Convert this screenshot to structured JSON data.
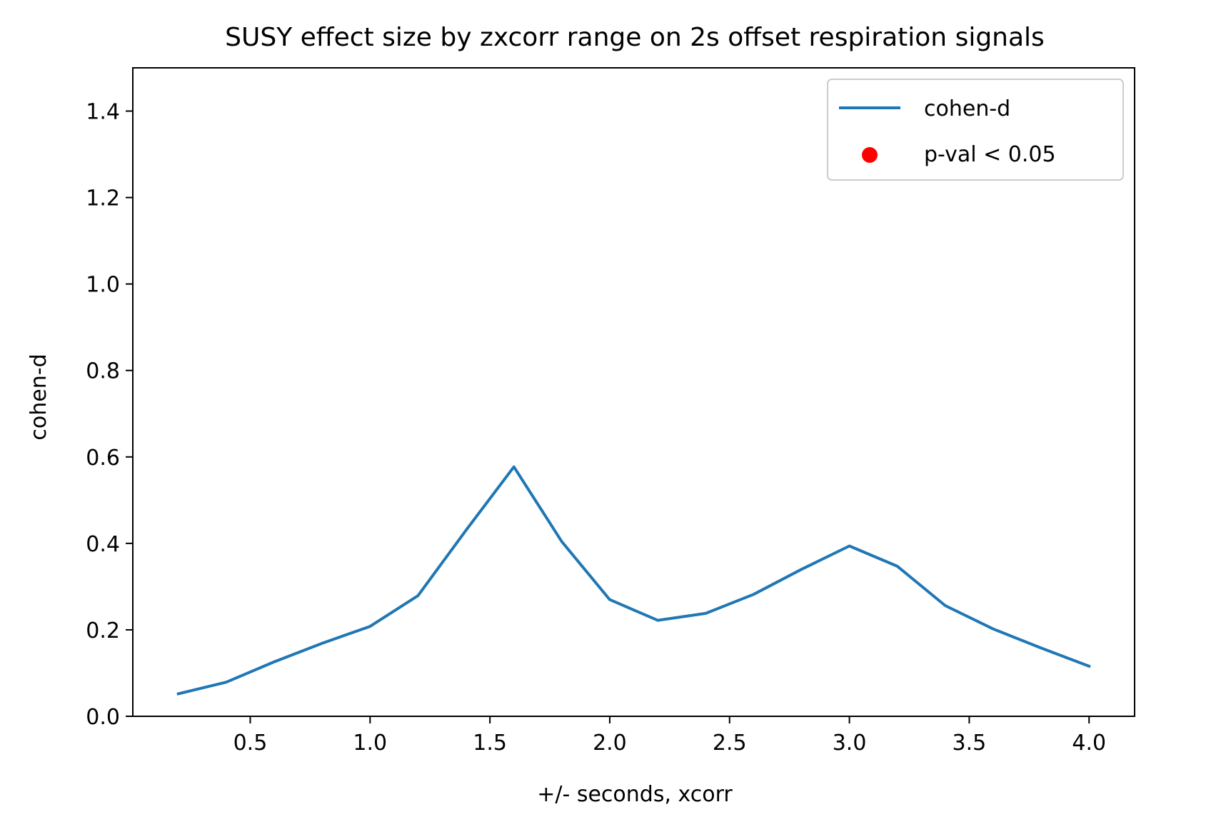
{
  "chart_data": {
    "type": "line",
    "title": "SUSY effect size by zxcorr range on 2s offset respiration signals",
    "xlabel": "+/- seconds, xcorr",
    "ylabel": "cohen-d",
    "xlim": [
      0.01,
      4.19
    ],
    "ylim": [
      0.0,
      1.5
    ],
    "xticks": [
      0.5,
      1.0,
      1.5,
      2.0,
      2.5,
      3.0,
      3.5,
      4.0
    ],
    "xtick_labels": [
      "0.5",
      "1.0",
      "1.5",
      "2.0",
      "2.5",
      "3.0",
      "3.5",
      "4.0"
    ],
    "yticks": [
      0.0,
      0.2,
      0.4,
      0.6,
      0.8,
      1.0,
      1.2,
      1.4
    ],
    "ytick_labels": [
      "0.0",
      "0.2",
      "0.4",
      "0.6",
      "0.8",
      "1.0",
      "1.2",
      "1.4"
    ],
    "grid": false,
    "legend_position": "top-right",
    "legend": [
      {
        "label": "cohen-d",
        "marker": "line",
        "color": "#1f77b4"
      },
      {
        "label": "p-val < 0.05",
        "marker": "dot",
        "color": "#ff0000"
      }
    ],
    "series": [
      {
        "name": "cohen-d",
        "color": "#1f77b4",
        "x": [
          0.2,
          0.4,
          0.6,
          0.8,
          1.0,
          1.2,
          1.4,
          1.6,
          1.8,
          2.0,
          2.2,
          2.4,
          2.6,
          2.8,
          3.0,
          3.2,
          3.4,
          3.6,
          3.8,
          4.0
        ],
        "y": [
          0.052,
          0.079,
          0.126,
          0.169,
          0.208,
          0.279,
          0.43,
          0.577,
          0.404,
          0.27,
          0.222,
          0.238,
          0.282,
          0.34,
          0.394,
          0.347,
          0.256,
          0.202,
          0.158,
          0.116
        ]
      }
    ],
    "significant_points": {
      "name": "p-val < 0.05",
      "color": "#ff0000",
      "x": [],
      "y": []
    }
  }
}
